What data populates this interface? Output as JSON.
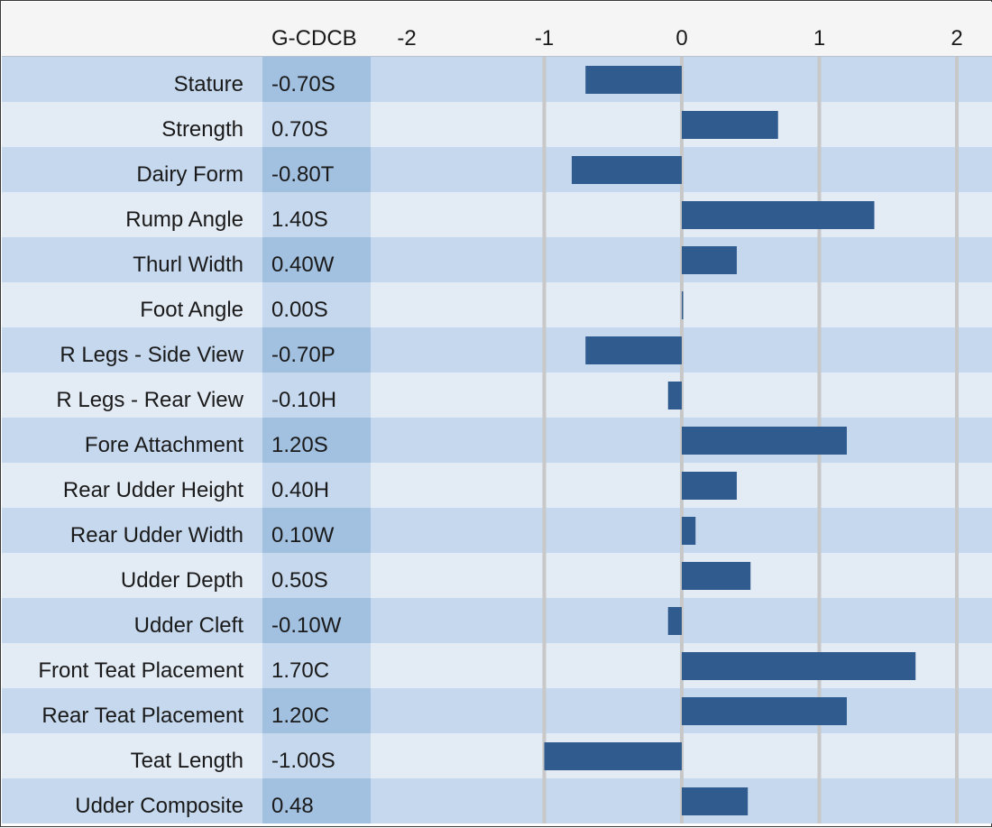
{
  "chart_data": {
    "type": "bar",
    "orientation": "horizontal",
    "value_column_header": "G-CDCB",
    "x_ticks": [
      "-2",
      "-1",
      "0",
      "1",
      "2"
    ],
    "xlim": [
      -2,
      2
    ],
    "grid": true,
    "colors": {
      "bar": "#2f5b8e",
      "band_light": "#e3ebf5",
      "band_dark": "#c5d8ed",
      "col_light": "#c5d8ed",
      "col_dark": "#a2c0e0",
      "grid": "#c8c8c8",
      "header_bg": "#f5f5f5"
    },
    "categories": [
      "Stature",
      "Strength",
      "Dairy Form",
      "Rump Angle",
      "Thurl Width",
      "Foot Angle",
      "R Legs - Side View",
      "R Legs - Rear View",
      "Fore Attachment",
      "Rear Udder Height",
      "Rear Udder Width",
      "Udder Depth",
      "Udder Cleft",
      "Front Teat Placement",
      "Rear Teat Placement",
      "Teat Length",
      "Udder Composite"
    ],
    "value_labels": [
      "-0.70S",
      "0.70S",
      "-0.80T",
      "1.40S",
      "0.40W",
      "0.00S",
      "-0.70P",
      "-0.10H",
      "1.20S",
      "0.40H",
      "0.10W",
      "0.50S",
      "-0.10W",
      "1.70C",
      "1.20C",
      "-1.00S",
      "0.48"
    ],
    "values": [
      -0.7,
      0.7,
      -0.8,
      1.4,
      0.4,
      0.0,
      -0.7,
      -0.1,
      1.2,
      0.4,
      0.1,
      0.5,
      -0.1,
      1.7,
      1.2,
      -1.0,
      0.48
    ]
  }
}
